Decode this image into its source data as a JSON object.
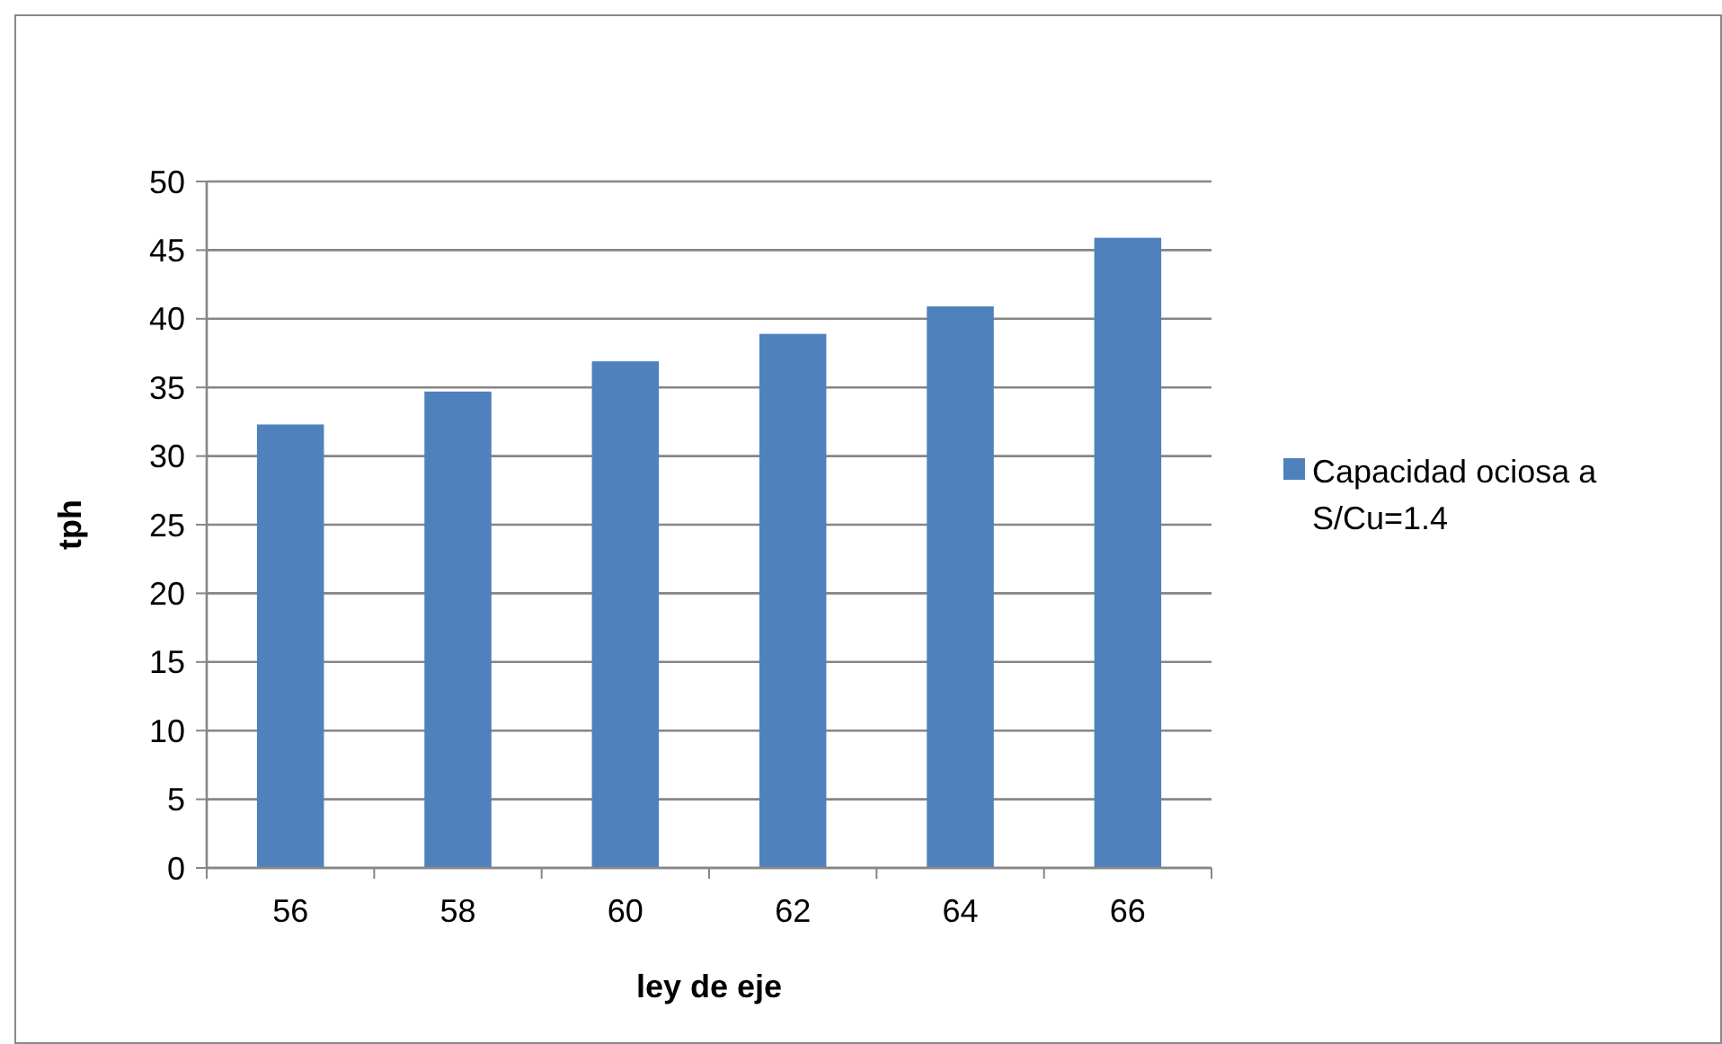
{
  "chart_data": {
    "type": "bar",
    "xlabel": "ley de eje",
    "ylabel": "tph",
    "categories": [
      "56",
      "58",
      "60",
      "62",
      "64",
      "66"
    ],
    "series": [
      {
        "name": "Capacidad ociosa a S/Cu=1.4",
        "color": "#4f81bd",
        "values": [
          32.3,
          34.7,
          36.9,
          38.9,
          40.9,
          45.9
        ]
      }
    ],
    "ylim": [
      0,
      50
    ],
    "yticks": [
      0,
      5,
      10,
      15,
      20,
      25,
      30,
      35,
      40,
      45,
      50
    ],
    "grid": "y",
    "legend": "right"
  }
}
